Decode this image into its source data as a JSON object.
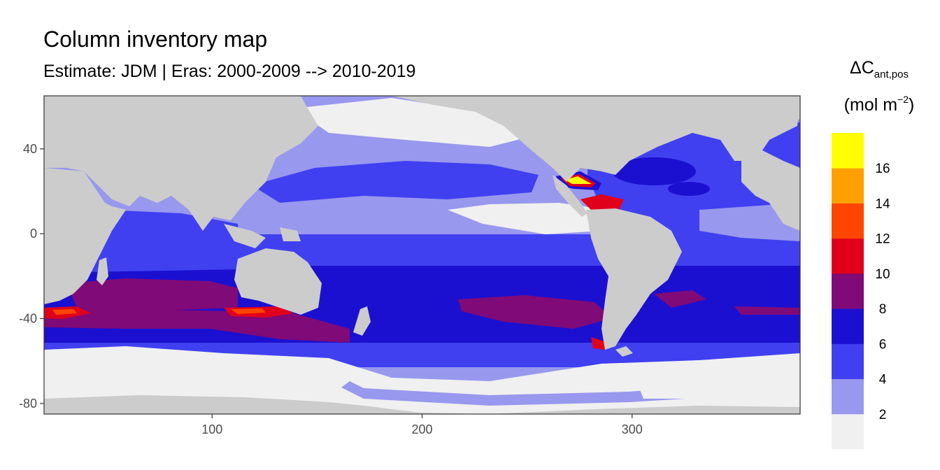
{
  "chart_data": {
    "type": "heatmap",
    "title": "Column inventory map",
    "subtitle": "Estimate: JDM  | Eras: 2000-2009 --> 2010-2019",
    "legend": {
      "symbol": "ΔC",
      "subscript": "ant,pos",
      "unit_base": "(mol m",
      "unit_exp": "−2",
      "unit_close": ")",
      "placement": "right",
      "bins": [
        {
          "label": "",
          "color": "#f0f0f0"
        },
        {
          "label": "2",
          "color": "#9898ee"
        },
        {
          "label": "4",
          "color": "#4040f0"
        },
        {
          "label": "6",
          "color": "#1c10d0"
        },
        {
          "label": "8",
          "color": "#7f0a78"
        },
        {
          "label": "10",
          "color": "#e0001c"
        },
        {
          "label": "12",
          "color": "#ff4500"
        },
        {
          "label": "14",
          "color": "#ffa000"
        },
        {
          "label": "16",
          "color": "#ffff00"
        }
      ]
    },
    "xlim": [
      20,
      380
    ],
    "ylim": [
      -85,
      65
    ],
    "x_ticks": [
      "100",
      "200",
      "300"
    ],
    "y_ticks": [
      "40",
      "0",
      "-40",
      "-80"
    ],
    "land_color": "#cccccc",
    "grid": false
  }
}
